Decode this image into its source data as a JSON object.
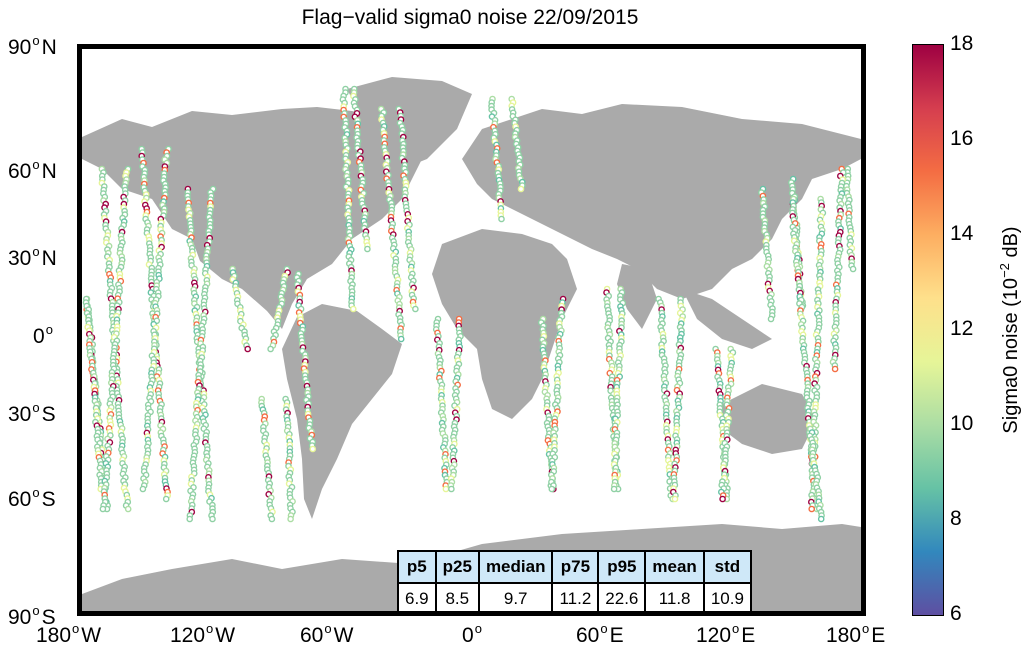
{
  "title": "Flag−valid sigma0 noise 22/09/2015",
  "lat_labels": [
    {
      "num": "90",
      "dir": "N"
    },
    {
      "num": "60",
      "dir": "N"
    },
    {
      "num": "30",
      "dir": "N"
    },
    {
      "num": "0",
      "dir": ""
    },
    {
      "num": "30",
      "dir": "S"
    },
    {
      "num": "60",
      "dir": "S"
    },
    {
      "num": "90",
      "dir": "S"
    }
  ],
  "lon_labels": [
    {
      "num": "180",
      "dir": "W"
    },
    {
      "num": "120",
      "dir": "W"
    },
    {
      "num": "60",
      "dir": "W"
    },
    {
      "num": "0",
      "dir": ""
    },
    {
      "num": "60",
      "dir": "E"
    },
    {
      "num": "120",
      "dir": "E"
    },
    {
      "num": "180",
      "dir": "E"
    }
  ],
  "colorbar": {
    "ticks": [
      "18",
      "16",
      "14",
      "12",
      "10",
      "8",
      "6"
    ],
    "min": 6,
    "max": 18,
    "label_main": "Sigma0 noise (10",
    "label_sup": "−2",
    "label_end": " dB)",
    "colormap": [
      "#5e4fa2",
      "#3288bd",
      "#66c2a5",
      "#abdda4",
      "#e6f598",
      "#fee08b",
      "#fdae61",
      "#f46d43",
      "#d53e4f",
      "#9e0142"
    ]
  },
  "map": {
    "land_color": "#aaaaaa",
    "track_color_main": "#8fd0a4"
  },
  "stats": {
    "headers": [
      "p5",
      "p25",
      "median",
      "p75",
      "p95",
      "mean",
      "std"
    ],
    "values": [
      "6.9",
      "8.5",
      "9.7",
      "11.2",
      "22.6",
      "11.8",
      "10.9"
    ]
  }
}
